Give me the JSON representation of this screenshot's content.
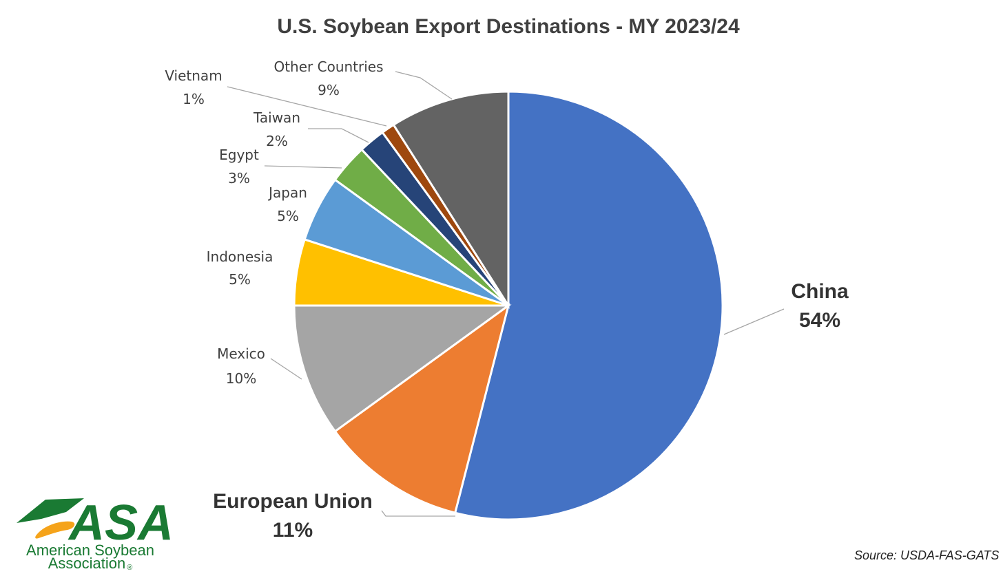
{
  "chart_data": {
    "type": "pie",
    "title": "U.S. Soybean Export Destinations - MY 2023/24",
    "start_angle_deg": 0,
    "direction": "clockwise",
    "slices": [
      {
        "label": "China",
        "value": 54,
        "value_label": "54%",
        "color": "#4472c4",
        "emphasis": true
      },
      {
        "label": "European Union",
        "value": 11,
        "value_label": "11%",
        "color": "#ed7d31",
        "emphasis": true
      },
      {
        "label": "Mexico",
        "value": 10,
        "value_label": "10%",
        "color": "#a5a5a5",
        "emphasis": false
      },
      {
        "label": "Indonesia",
        "value": 5,
        "value_label": "5%",
        "color": "#ffc000",
        "emphasis": false
      },
      {
        "label": "Japan",
        "value": 5,
        "value_label": "5%",
        "color": "#5b9bd5",
        "emphasis": false
      },
      {
        "label": "Egypt",
        "value": 3,
        "value_label": "3%",
        "color": "#70ad47",
        "emphasis": false
      },
      {
        "label": "Taiwan",
        "value": 2,
        "value_label": "2%",
        "color": "#264478",
        "emphasis": false
      },
      {
        "label": "Vietnam",
        "value": 1,
        "value_label": "1%",
        "color": "#9e480e",
        "emphasis": false
      },
      {
        "label": "Other Countries",
        "value": 9,
        "value_label": "9%",
        "color": "#636363",
        "emphasis": false
      }
    ],
    "legend": "none",
    "data_labels": "outside with leader lines"
  },
  "logo": {
    "mark_text": "ASA",
    "name_line1": "American Soybean",
    "name_line2": "Association",
    "registered_mark": "®",
    "accent_color": "#f5a31a",
    "brand_color": "#1a7a33"
  },
  "source": "Source: USDA-FAS-GATS"
}
